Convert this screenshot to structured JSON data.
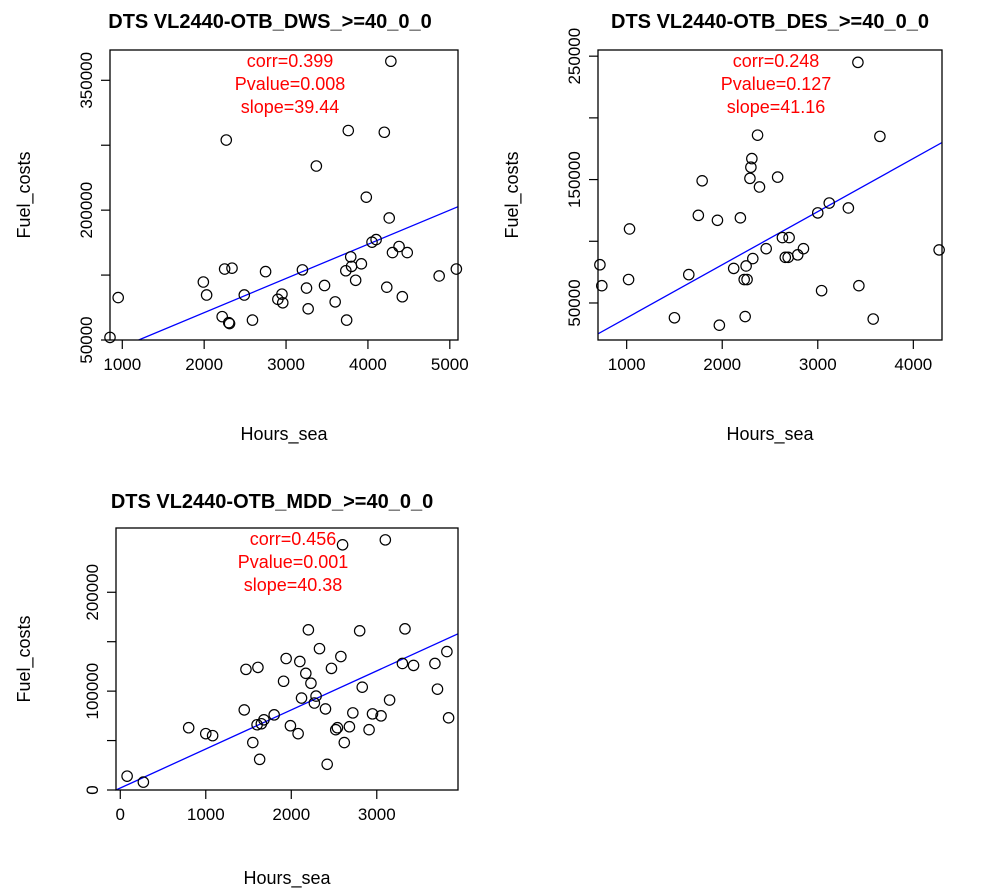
{
  "chart_data": [
    {
      "type": "scatter",
      "title": "DTS VL2440-OTB_DWS_>=40_0_0",
      "xlabel": "Hours_sea",
      "ylabel": "Fuel_costs",
      "xlim": [
        850,
        5100
      ],
      "ylim": [
        50000,
        385000
      ],
      "xticks": [
        1000,
        2000,
        3000,
        4000,
        5000
      ],
      "yticks": [
        50000,
        200000,
        350000
      ],
      "yticks_minor": [
        125000,
        275000
      ],
      "annotations": [
        "corr=0.399",
        "Pvalue=0.008",
        "slope=39.44"
      ],
      "points": [
        [
          850,
          53000
        ],
        [
          950,
          99000
        ],
        [
          1990,
          117000
        ],
        [
          2030,
          102000
        ],
        [
          2220,
          77000
        ],
        [
          2250,
          132000
        ],
        [
          2270,
          281000
        ],
        [
          2300,
          70000
        ],
        [
          2310,
          69000
        ],
        [
          2340,
          133000
        ],
        [
          2490,
          102000
        ],
        [
          2590,
          73000
        ],
        [
          2750,
          129000
        ],
        [
          2900,
          97000
        ],
        [
          2950,
          103000
        ],
        [
          2960,
          93000
        ],
        [
          3200,
          131000
        ],
        [
          3250,
          110000
        ],
        [
          3270,
          86000
        ],
        [
          3370,
          251000
        ],
        [
          3470,
          113000
        ],
        [
          3600,
          94000
        ],
        [
          3730,
          130000
        ],
        [
          3740,
          73000
        ],
        [
          3760,
          292000
        ],
        [
          3790,
          146000
        ],
        [
          3800,
          135000
        ],
        [
          3850,
          119000
        ],
        [
          3920,
          138000
        ],
        [
          3980,
          215000
        ],
        [
          4050,
          163000
        ],
        [
          4100,
          166000
        ],
        [
          4200,
          290000
        ],
        [
          4230,
          111000
        ],
        [
          4260,
          191000
        ],
        [
          4280,
          372000
        ],
        [
          4300,
          151000
        ],
        [
          4380,
          158000
        ],
        [
          4420,
          100000
        ],
        [
          4480,
          151000
        ],
        [
          4870,
          124000
        ],
        [
          5080,
          132000
        ]
      ],
      "fit_line": [
        [
          1200,
          50000
        ],
        [
          5100,
          204000
        ]
      ]
    },
    {
      "type": "scatter",
      "title": "DTS VL2440-OTB_DES_>=40_0_0",
      "xlabel": "Hours_sea",
      "ylabel": "Fuel_costs",
      "xlim": [
        700,
        4300
      ],
      "ylim": [
        20000,
        255000
      ],
      "xticks": [
        1000,
        2000,
        3000,
        4000
      ],
      "yticks": [
        50000,
        150000,
        250000
      ],
      "yticks_minor": [
        100000,
        200000
      ],
      "annotations": [
        "corr=0.248",
        "Pvalue=0.127",
        "slope=41.16"
      ],
      "points": [
        [
          720,
          81000
        ],
        [
          740,
          64000
        ],
        [
          1020,
          69000
        ],
        [
          1030,
          110000
        ],
        [
          1500,
          38000
        ],
        [
          1650,
          73000
        ],
        [
          1750,
          121000
        ],
        [
          1790,
          149000
        ],
        [
          1950,
          117000
        ],
        [
          1970,
          32000
        ],
        [
          2120,
          78000
        ],
        [
          2190,
          119000
        ],
        [
          2230,
          69000
        ],
        [
          2240,
          39000
        ],
        [
          2250,
          80000
        ],
        [
          2260,
          69000
        ],
        [
          2290,
          151000
        ],
        [
          2300,
          160000
        ],
        [
          2310,
          167000
        ],
        [
          2320,
          86000
        ],
        [
          2370,
          186000
        ],
        [
          2390,
          144000
        ],
        [
          2460,
          94000
        ],
        [
          2580,
          152000
        ],
        [
          2630,
          103000
        ],
        [
          2660,
          87000
        ],
        [
          2690,
          87000
        ],
        [
          2700,
          103000
        ],
        [
          2790,
          89000
        ],
        [
          2850,
          94000
        ],
        [
          3000,
          123000
        ],
        [
          3040,
          60000
        ],
        [
          3120,
          131000
        ],
        [
          3320,
          127000
        ],
        [
          3420,
          245000
        ],
        [
          3430,
          64000
        ],
        [
          3580,
          37000
        ],
        [
          3650,
          185000
        ],
        [
          4270,
          93000
        ]
      ],
      "fit_line": [
        [
          700,
          25000
        ],
        [
          4300,
          180000
        ]
      ]
    },
    {
      "type": "scatter",
      "title": "DTS VL2440-OTB_MDD_>=40_0_0",
      "xlabel": "Hours_sea",
      "ylabel": "Fuel_costs",
      "xlim": [
        -50,
        3950
      ],
      "ylim": [
        0,
        265000
      ],
      "xticks": [
        0,
        1000,
        2000,
        3000
      ],
      "yticks": [
        0,
        100000,
        200000
      ],
      "yticks_minor": [
        50000,
        150000
      ],
      "annotations": [
        "corr=0.456",
        "Pvalue=0.001",
        "slope=40.38"
      ],
      "points": [
        [
          80,
          14000
        ],
        [
          270,
          8000
        ],
        [
          800,
          63000
        ],
        [
          1000,
          57000
        ],
        [
          1080,
          55000
        ],
        [
          1450,
          81000
        ],
        [
          1470,
          122000
        ],
        [
          1550,
          48000
        ],
        [
          1600,
          66000
        ],
        [
          1610,
          124000
        ],
        [
          1630,
          31000
        ],
        [
          1650,
          67000
        ],
        [
          1680,
          71000
        ],
        [
          1800,
          76000
        ],
        [
          1910,
          110000
        ],
        [
          1940,
          133000
        ],
        [
          1990,
          65000
        ],
        [
          2080,
          57000
        ],
        [
          2100,
          130000
        ],
        [
          2120,
          93000
        ],
        [
          2170,
          118000
        ],
        [
          2200,
          162000
        ],
        [
          2230,
          108000
        ],
        [
          2270,
          88000
        ],
        [
          2290,
          95000
        ],
        [
          2330,
          143000
        ],
        [
          2400,
          82000
        ],
        [
          2420,
          26000
        ],
        [
          2470,
          123000
        ],
        [
          2520,
          61000
        ],
        [
          2540,
          63000
        ],
        [
          2580,
          135000
        ],
        [
          2600,
          248000
        ],
        [
          2620,
          48000
        ],
        [
          2680,
          64000
        ],
        [
          2720,
          78000
        ],
        [
          2800,
          161000
        ],
        [
          2830,
          104000
        ],
        [
          2910,
          61000
        ],
        [
          2950,
          77000
        ],
        [
          3050,
          75000
        ],
        [
          3100,
          253000
        ],
        [
          3150,
          91000
        ],
        [
          3300,
          128000
        ],
        [
          3330,
          163000
        ],
        [
          3430,
          126000
        ],
        [
          3680,
          128000
        ],
        [
          3710,
          102000
        ],
        [
          3820,
          140000
        ],
        [
          3840,
          73000
        ]
      ],
      "fit_line": [
        [
          -50,
          0
        ],
        [
          3950,
          158000
        ]
      ]
    }
  ]
}
